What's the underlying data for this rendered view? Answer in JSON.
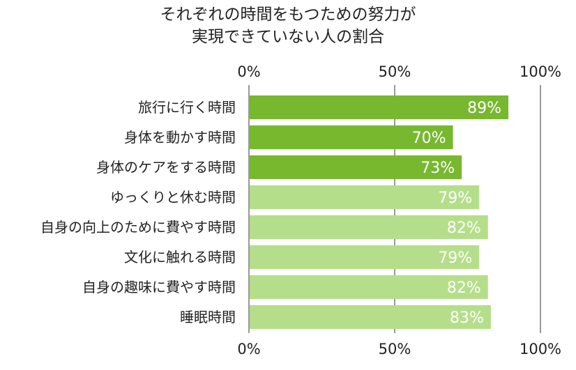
{
  "chart_data": {
    "type": "bar",
    "orientation": "horizontal",
    "title": "それぞれの時間をもつための努力が実現できていない人の割合",
    "title_lines": [
      "それぞれの時間をもつための努力が",
      "実現できていない人の割合"
    ],
    "categories": [
      "旅行に行く時間",
      "身体を動かす時間",
      "身体のケアをする時間",
      "ゆっくりと休む時間",
      "自身の向上のために費やす時間",
      "文化に触れる時間",
      "自身の趣味に費やす時間",
      "睡眠時間"
    ],
    "values": [
      89,
      70,
      73,
      79,
      82,
      79,
      82,
      83
    ],
    "value_labels": [
      "89%",
      "70%",
      "73%",
      "79%",
      "82%",
      "79%",
      "82%",
      "83%"
    ],
    "xlim": [
      0,
      100
    ],
    "ticks": [
      "0%",
      "50%",
      "100%"
    ],
    "tick_values": [
      0,
      50,
      100
    ],
    "tick_position": "top and bottom",
    "grid": true,
    "colors": [
      "#77b82f",
      "#77b82f",
      "#77b82f",
      "#b5de8a",
      "#b5de8a",
      "#b5de8a",
      "#b5de8a",
      "#b5de8a"
    ]
  }
}
